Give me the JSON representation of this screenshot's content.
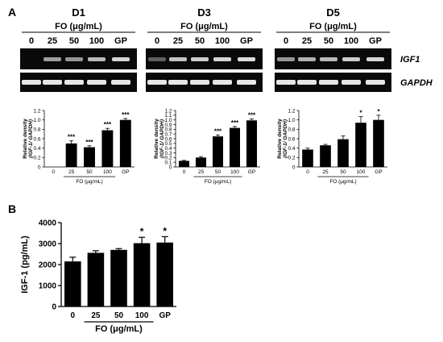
{
  "panel_a": {
    "letter": "A",
    "conc_title": "FO (μg/mL)",
    "lane_labels": [
      "0",
      "25",
      "50",
      "100",
      "GP"
    ],
    "gene_labels": [
      "IGF1",
      "GAPDH"
    ],
    "days": [
      {
        "title": "D1",
        "igf1_bands": [
          0.0,
          0.55,
          0.5,
          0.7,
          0.85
        ]
      },
      {
        "title": "D3",
        "igf1_bands": [
          0.2,
          0.75,
          0.8,
          0.85,
          0.9
        ]
      },
      {
        "title": "D5",
        "igf1_bands": [
          0.5,
          0.65,
          0.7,
          0.8,
          0.85
        ]
      }
    ]
  },
  "panel_b": {
    "letter": "B"
  },
  "chart_data": [
    {
      "type": "bar",
      "panel": "A",
      "day": "D1",
      "categories": [
        "0",
        "25",
        "50",
        "100",
        "GP"
      ],
      "values": [
        0.0,
        0.5,
        0.42,
        0.78,
        1.0
      ],
      "errors": [
        0.0,
        0.06,
        0.03,
        0.04,
        0.03
      ],
      "annotations": [
        "",
        "***",
        "***",
        "***",
        "***"
      ],
      "ylabel": "Relative density",
      "ylabel2": "(IGF-1/ GAPDH)",
      "xlabel": "FO (μg/mL)",
      "ylim": [
        0,
        1.2
      ],
      "yticks": [
        "0",
        "0.2",
        "0.4",
        "0.6",
        "0.8",
        "1.0",
        "1.2"
      ]
    },
    {
      "type": "bar",
      "panel": "A",
      "day": "D3",
      "categories": [
        "0",
        "25",
        "50",
        "100",
        "GP"
      ],
      "values": [
        0.13,
        0.2,
        0.65,
        0.83,
        0.99
      ],
      "errors": [
        0.01,
        0.02,
        0.03,
        0.03,
        0.03
      ],
      "annotations": [
        "",
        "",
        "***",
        "***",
        "***"
      ],
      "ylabel": "Relative density",
      "ylabel2": "(IGF-1/ GAPDH)",
      "xlabel": "FO (μg/mL)",
      "ylim": [
        0,
        1.2
      ],
      "yticks": [
        "0",
        "0.1",
        "0.2",
        "0.3",
        "0.4",
        "0.5",
        "0.6",
        "0.7",
        "0.8",
        "0.9",
        "1.0",
        "1.1",
        "1.2"
      ]
    },
    {
      "type": "bar",
      "panel": "A",
      "day": "D5",
      "categories": [
        "0",
        "25",
        "50",
        "100",
        "GP"
      ],
      "values": [
        0.37,
        0.46,
        0.59,
        0.94,
        1.0
      ],
      "errors": [
        0.03,
        0.02,
        0.07,
        0.13,
        0.1
      ],
      "annotations": [
        "",
        "",
        "",
        "*",
        "*"
      ],
      "ylabel": "Relative density",
      "ylabel2": "(IGF-1/ GAPDH)",
      "xlabel": "FO (μg/mL)",
      "ylim": [
        0,
        1.2
      ],
      "yticks": [
        "0",
        "0.2",
        "0.4",
        "0.6",
        "0.8",
        "1.0",
        "1.2"
      ]
    },
    {
      "type": "bar",
      "panel": "B",
      "categories": [
        "0",
        "25",
        "50",
        "100",
        "GP"
      ],
      "values": [
        2150,
        2560,
        2700,
        3020,
        3050
      ],
      "errors": [
        200,
        100,
        60,
        280,
        280
      ],
      "annotations": [
        "",
        "",
        "",
        "*",
        "*"
      ],
      "ylabel": "IGF-1 (pg/mL)",
      "xlabel": "FO (μg/mL)",
      "ylim": [
        0,
        4000
      ],
      "yticks": [
        "0",
        "1000",
        "2000",
        "3000",
        "4000"
      ]
    }
  ]
}
